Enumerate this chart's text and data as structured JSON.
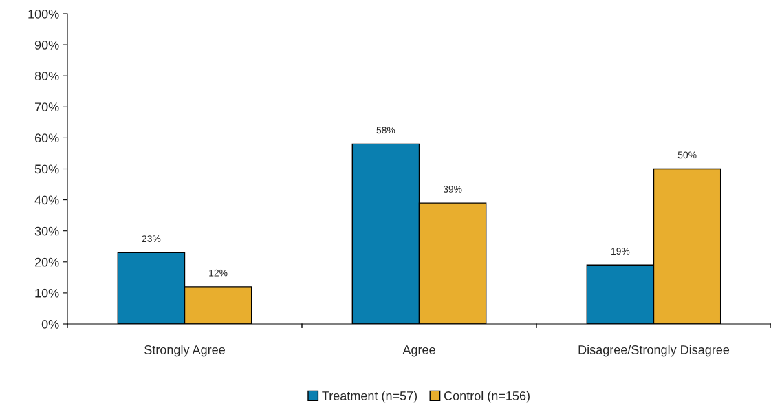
{
  "chart_data": {
    "type": "bar",
    "categories": [
      "Strongly Agree",
      "Agree",
      "Disagree/Strongly Disagree"
    ],
    "series": [
      {
        "name": "Treatment (n=57)",
        "color": "#0a7fb0",
        "values": [
          23,
          58,
          19
        ],
        "value_labels": [
          "23%",
          "58%",
          "19%"
        ]
      },
      {
        "name": "Control (n=156)",
        "color": "#e8ae2e",
        "values": [
          12,
          39,
          50
        ],
        "value_labels": [
          "12%",
          "39%",
          "50%"
        ]
      }
    ],
    "ylim": [
      0,
      100
    ],
    "yticks": [
      {
        "value": 0,
        "label": "0%"
      },
      {
        "value": 10,
        "label": "10%"
      },
      {
        "value": 20,
        "label": "20%"
      },
      {
        "value": 30,
        "label": "30%"
      },
      {
        "value": 40,
        "label": "40%"
      },
      {
        "value": 50,
        "label": "50%"
      },
      {
        "value": 60,
        "label": "60%"
      },
      {
        "value": 70,
        "label": "70%"
      },
      {
        "value": 80,
        "label": "80%"
      },
      {
        "value": 90,
        "label": "90%"
      },
      {
        "value": 100,
        "label": "100%"
      }
    ],
    "grid": false,
    "legend": "bottom"
  }
}
